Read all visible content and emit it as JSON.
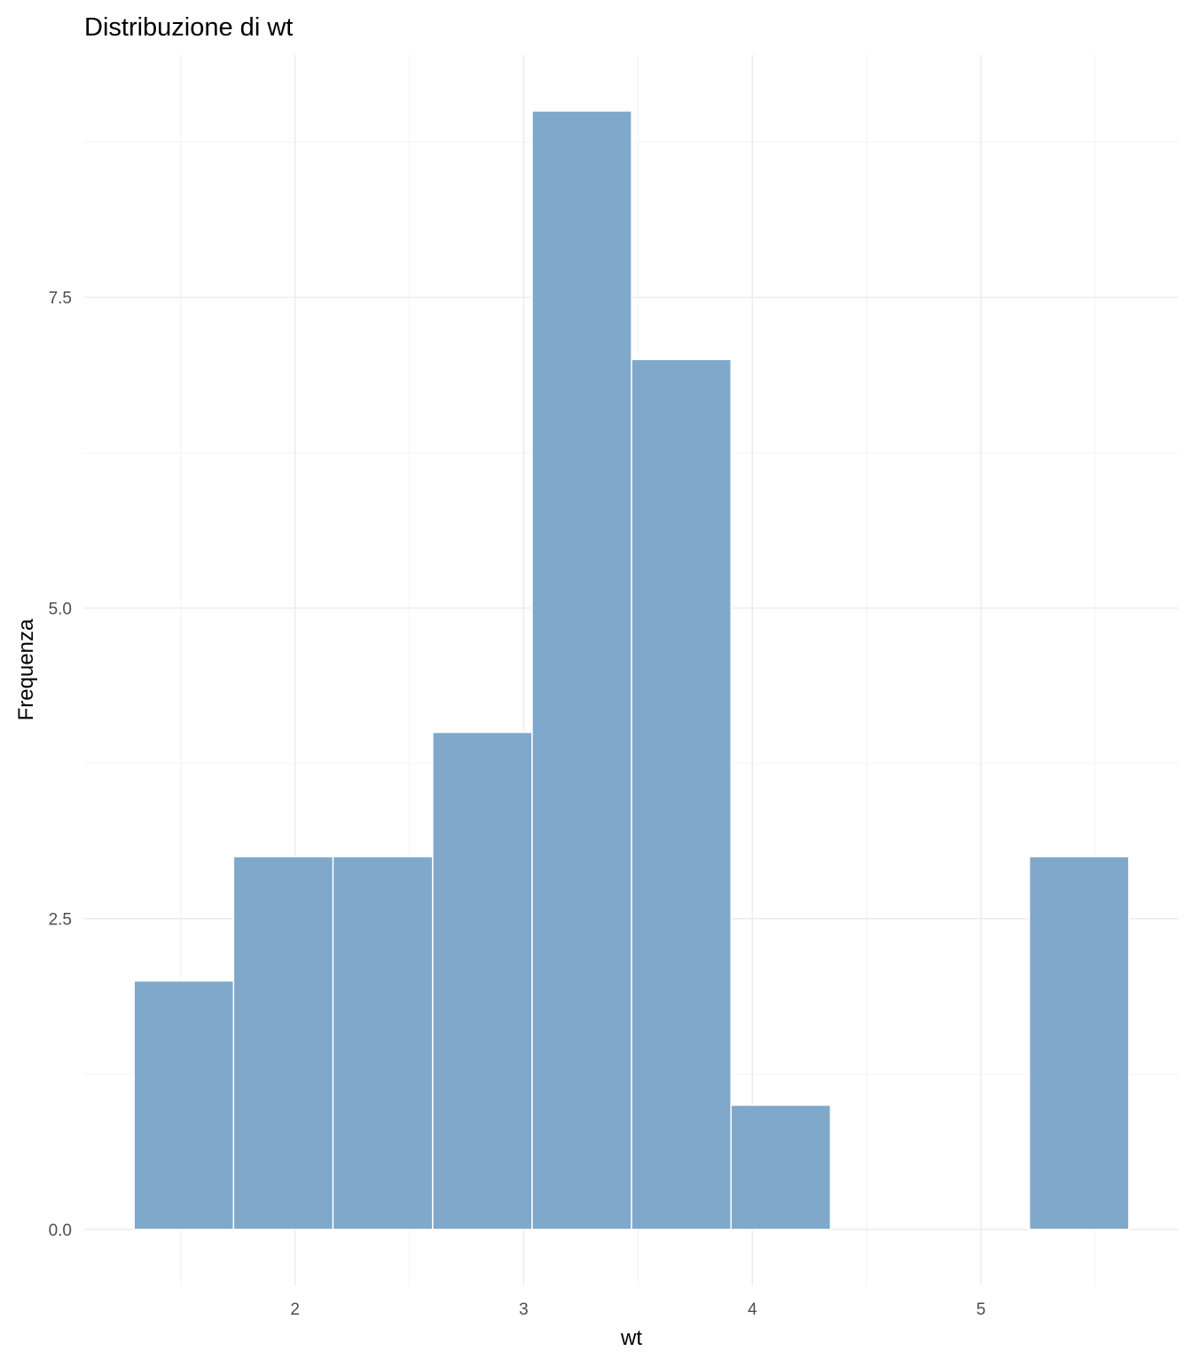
{
  "chart_data": {
    "type": "bar",
    "title": "Distribuzione di wt",
    "xlabel": "wt",
    "ylabel": "Frequenza",
    "bins": [
      {
        "x0": 1.296,
        "x1": 1.731,
        "count": 2
      },
      {
        "x0": 1.731,
        "x1": 2.166,
        "count": 3
      },
      {
        "x0": 2.166,
        "x1": 2.602,
        "count": 3
      },
      {
        "x0": 2.602,
        "x1": 3.037,
        "count": 4
      },
      {
        "x0": 3.037,
        "x1": 3.472,
        "count": 9
      },
      {
        "x0": 3.472,
        "x1": 3.907,
        "count": 7
      },
      {
        "x0": 3.907,
        "x1": 4.342,
        "count": 1
      },
      {
        "x0": 4.342,
        "x1": 4.777,
        "count": 0
      },
      {
        "x0": 4.777,
        "x1": 5.212,
        "count": 0
      },
      {
        "x0": 5.212,
        "x1": 5.647,
        "count": 3
      }
    ],
    "x_ticks": [
      2,
      3,
      4,
      5
    ],
    "x_tick_labels": [
      "2",
      "3",
      "4",
      "5"
    ],
    "y_ticks": [
      0,
      2.5,
      5,
      7.5
    ],
    "y_tick_labels": [
      "0.0",
      "2.5",
      "5.0",
      "7.5"
    ],
    "xlim": [
      1.078,
      5.865
    ],
    "ylim": [
      -0.45,
      9.45
    ],
    "grid": true,
    "legend": "none",
    "colors": {
      "bar_fill": "#7fa8cb",
      "bar_border": "#ffffff",
      "grid": "#ebebeb",
      "tick_text": "#4d4d4d",
      "title_text": "#000000"
    }
  }
}
